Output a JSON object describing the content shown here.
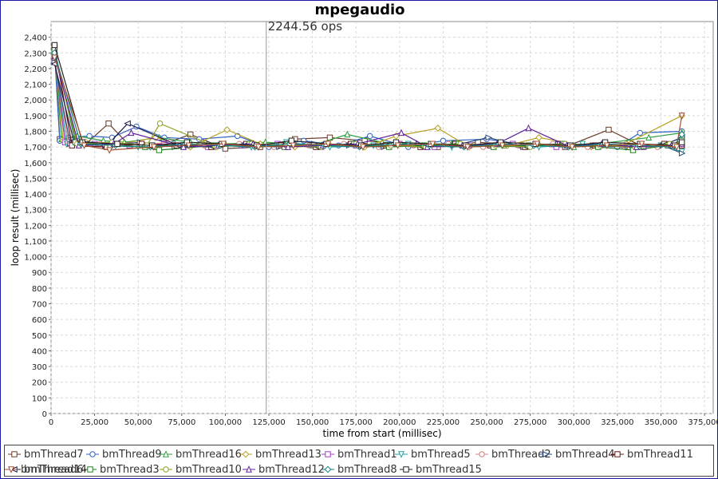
{
  "chart_data": {
    "type": "line",
    "title": "mpegaudio",
    "xlabel": "time from start (millisec)",
    "ylabel": "loop result (millisec)",
    "xlim": [
      0,
      380000
    ],
    "ylim": [
      0,
      2500
    ],
    "x_ticks": [
      "0",
      "25,000",
      "50,000",
      "75,000",
      "100,000",
      "125,000",
      "150,000",
      "175,000",
      "200,000",
      "225,000",
      "250,000",
      "275,000",
      "300,000",
      "325,000",
      "350,000",
      "375,000"
    ],
    "y_ticks": [
      "0",
      "100",
      "200",
      "300",
      "400",
      "500",
      "600",
      "700",
      "800",
      "900",
      "1,000",
      "1,100",
      "1,200",
      "1,300",
      "1,400",
      "1,500",
      "1,600",
      "1,700",
      "1,800",
      "1,900",
      "2,000",
      "2,100",
      "2,200",
      "2,300",
      "2,400"
    ],
    "grid": true,
    "legend_position": "bottom",
    "marker_line": {
      "x": 123500,
      "label": "2244.56 ops"
    },
    "series_colors": {
      "bmThread7": "#6b3a2a",
      "bmThread9": "#3060c0",
      "bmThread16": "#2e9e3e",
      "bmThread13": "#b8a020",
      "bmThread1": "#a040c0",
      "bmThread5": "#20a0a0",
      "bmThread2": "#d08080",
      "bmThread4": "#2a4a7a",
      "bmThread11": "#6a1010",
      "bmThread6": "#1a1a4a",
      "bmThread3": "#208020",
      "bmThread10": "#90a020",
      "bmThread12": "#6020a0",
      "bmThread8": "#108080",
      "bmThread15": "#202020",
      "bmThread14": "#a05030"
    },
    "series": [
      {
        "name": "bmThread7",
        "marker": "square",
        "x": [
          2000,
          5000,
          10000,
          20000,
          33000,
          45000,
          60000,
          80000,
          100000,
          120000,
          140000,
          160000,
          180000,
          200000,
          222000,
          245000,
          270000,
          295000,
          320000,
          340000,
          362000
        ],
        "y": [
          2330,
          1750,
          1740,
          1720,
          1850,
          1710,
          1700,
          1780,
          1690,
          1700,
          1750,
          1760,
          1740,
          1720,
          1700,
          1730,
          1710,
          1700,
          1810,
          1700,
          1710
        ]
      },
      {
        "name": "bmThread9",
        "marker": "circle",
        "x": [
          2000,
          5000,
          10000,
          22000,
          35000,
          49000,
          65000,
          85000,
          107000,
          125000,
          145000,
          165000,
          183000,
          205000,
          225000,
          250000,
          275000,
          300000,
          325000,
          338000,
          362000
        ],
        "y": [
          2300,
          1740,
          1760,
          1770,
          1760,
          1830,
          1760,
          1750,
          1770,
          1700,
          1740,
          1710,
          1770,
          1700,
          1740,
          1750,
          1710,
          1710,
          1700,
          1790,
          1800
        ]
      },
      {
        "name": "bmThread16",
        "marker": "triangle-up",
        "x": [
          2000,
          6000,
          15000,
          30000,
          42000,
          62000,
          80000,
          100000,
          123000,
          150000,
          170000,
          190000,
          210000,
          230000,
          260000,
          280000,
          300000,
          343000,
          362000
        ],
        "y": [
          2310,
          1750,
          1770,
          1740,
          1730,
          1760,
          1730,
          1720,
          1730,
          1710,
          1780,
          1730,
          1720,
          1720,
          1710,
          1720,
          1700,
          1760,
          1790
        ]
      },
      {
        "name": "bmThread13",
        "marker": "diamond",
        "x": [
          2000,
          7000,
          20000,
          40000,
          60000,
          80000,
          101000,
          120000,
          140000,
          160000,
          180000,
          198000,
          222000,
          240000,
          262000,
          280000,
          310000,
          330000,
          362000
        ],
        "y": [
          2280,
          1740,
          1730,
          1720,
          1760,
          1700,
          1810,
          1720,
          1700,
          1710,
          1700,
          1770,
          1820,
          1700,
          1710,
          1760,
          1700,
          1720,
          1900
        ]
      },
      {
        "name": "bmThread1",
        "marker": "square",
        "x": [
          2000,
          8000,
          25000,
          45000,
          65000,
          90000,
          110000,
          130000,
          155000,
          175000,
          200000,
          220000,
          240000,
          265000,
          290000,
          315000,
          340000,
          362000
        ],
        "y": [
          2270,
          1730,
          1720,
          1710,
          1720,
          1700,
          1710,
          1720,
          1700,
          1710,
          1720,
          1700,
          1710,
          1720,
          1700,
          1710,
          1700,
          1720
        ]
      },
      {
        "name": "bmThread5",
        "marker": "triangle-down",
        "x": [
          2000,
          9000,
          30000,
          50000,
          70000,
          95000,
          115000,
          135000,
          160000,
          185000,
          205000,
          230000,
          255000,
          280000,
          305000,
          330000,
          350000,
          362000
        ],
        "y": [
          2260,
          1720,
          1710,
          1700,
          1720,
          1710,
          1700,
          1730,
          1700,
          1710,
          1720,
          1700,
          1710,
          1700,
          1720,
          1700,
          1710,
          1670
        ]
      },
      {
        "name": "bmThread2",
        "marker": "circle",
        "x": [
          2000,
          10000,
          28000,
          48000,
          68000,
          88000,
          108000,
          128000,
          148000,
          168000,
          188000,
          208000,
          228000,
          248000,
          268000,
          288000,
          308000,
          328000,
          348000,
          362000
        ],
        "y": [
          2250,
          1730,
          1720,
          1710,
          1730,
          1710,
          1720,
          1700,
          1710,
          1720,
          1700,
          1710,
          1720,
          1700,
          1710,
          1720,
          1700,
          1710,
          1700,
          1720
        ]
      },
      {
        "name": "bmThread4",
        "marker": "triangle-right",
        "x": [
          2000,
          11000,
          31000,
          51000,
          71000,
          91000,
          111000,
          131000,
          151000,
          171000,
          191000,
          211000,
          231000,
          251000,
          271000,
          291000,
          311000,
          331000,
          351000,
          362000
        ],
        "y": [
          2240,
          1720,
          1710,
          1730,
          1700,
          1720,
          1710,
          1700,
          1720,
          1710,
          1700,
          1720,
          1710,
          1760,
          1700,
          1720,
          1710,
          1700,
          1710,
          1660
        ]
      },
      {
        "name": "bmThread11",
        "marker": "square",
        "x": [
          2000,
          12000,
          32000,
          52000,
          72000,
          92000,
          112000,
          132000,
          152000,
          172000,
          192000,
          212000,
          232000,
          252000,
          272000,
          292000,
          312000,
          332000,
          352000,
          362000
        ],
        "y": [
          2340,
          1710,
          1700,
          1720,
          1710,
          1700,
          1720,
          1710,
          1700,
          1720,
          1710,
          1700,
          1720,
          1710,
          1700,
          1720,
          1710,
          1700,
          1720,
          1710
        ]
      },
      {
        "name": "bmThread6",
        "marker": "triangle-left",
        "x": [
          2000,
          13000,
          33000,
          44000,
          73000,
          93000,
          113000,
          133000,
          153000,
          173000,
          193000,
          213000,
          233000,
          253000,
          273000,
          293000,
          313000,
          333000,
          353000,
          362000
        ],
        "y": [
          2230,
          1740,
          1720,
          1850,
          1710,
          1700,
          1720,
          1710,
          1700,
          1720,
          1710,
          1700,
          1720,
          1710,
          1700,
          1720,
          1710,
          1700,
          1720,
          1760
        ]
      },
      {
        "name": "bmThread3",
        "marker": "square",
        "x": [
          2000,
          14000,
          34000,
          54000,
          62000,
          94000,
          114000,
          134000,
          154000,
          174000,
          194000,
          214000,
          234000,
          254000,
          274000,
          294000,
          314000,
          334000,
          354000,
          362000
        ],
        "y": [
          2320,
          1730,
          1710,
          1700,
          1680,
          1710,
          1720,
          1700,
          1710,
          1720,
          1700,
          1710,
          1720,
          1700,
          1710,
          1720,
          1700,
          1680,
          1710,
          1740
        ]
      },
      {
        "name": "bmThread10",
        "marker": "circle",
        "x": [
          2000,
          15000,
          35000,
          55000,
          62500,
          95000,
          115000,
          135000,
          155000,
          175000,
          195000,
          215000,
          235000,
          255000,
          275000,
          295000,
          315000,
          335000,
          355000,
          362000
        ],
        "y": [
          2290,
          1720,
          1730,
          1710,
          1850,
          1700,
          1720,
          1710,
          1700,
          1720,
          1710,
          1700,
          1720,
          1710,
          1700,
          1720,
          1710,
          1700,
          1720,
          1730
        ]
      },
      {
        "name": "bmThread12",
        "marker": "triangle-up",
        "x": [
          2000,
          16000,
          36000,
          46000,
          76000,
          96000,
          116000,
          136000,
          156000,
          176000,
          201000,
          216000,
          236000,
          256000,
          274000,
          296000,
          316000,
          336000,
          356000,
          362000
        ],
        "y": [
          2280,
          1710,
          1720,
          1790,
          1700,
          1710,
          1720,
          1700,
          1710,
          1720,
          1790,
          1700,
          1710,
          1720,
          1820,
          1710,
          1720,
          1700,
          1710,
          1720
        ]
      },
      {
        "name": "bmThread8",
        "marker": "diamond",
        "x": [
          2000,
          17000,
          37000,
          57000,
          77000,
          97000,
          117000,
          137000,
          157000,
          177000,
          197000,
          217000,
          237000,
          257000,
          277000,
          297000,
          317000,
          337000,
          357000,
          362000
        ],
        "y": [
          2300,
          1720,
          1710,
          1700,
          1720,
          1710,
          1700,
          1720,
          1710,
          1700,
          1720,
          1710,
          1700,
          1720,
          1710,
          1700,
          1720,
          1710,
          1700,
          1780
        ]
      },
      {
        "name": "bmThread15",
        "marker": "square",
        "x": [
          2000,
          18000,
          38000,
          58000,
          78000,
          98000,
          118000,
          138000,
          158000,
          178000,
          198000,
          218000,
          238000,
          258000,
          278000,
          298000,
          318000,
          338000,
          358000,
          362000
        ],
        "y": [
          2350,
          1730,
          1720,
          1710,
          1730,
          1720,
          1710,
          1740,
          1720,
          1710,
          1730,
          1720,
          1710,
          1730,
          1720,
          1710,
          1730,
          1720,
          1710,
          1730
        ]
      },
      {
        "name": "bmThread14",
        "marker": "triangle-down",
        "x": [
          2000,
          19000,
          33500,
          59000,
          79000,
          99000,
          119000,
          139000,
          159000,
          179000,
          199000,
          219000,
          239000,
          259000,
          279000,
          299000,
          319000,
          339000,
          359000,
          362000
        ],
        "y": [
          2270,
          1710,
          1680,
          1700,
          1710,
          1720,
          1700,
          1710,
          1720,
          1700,
          1710,
          1720,
          1700,
          1710,
          1720,
          1700,
          1710,
          1720,
          1700,
          1900
        ]
      }
    ]
  }
}
